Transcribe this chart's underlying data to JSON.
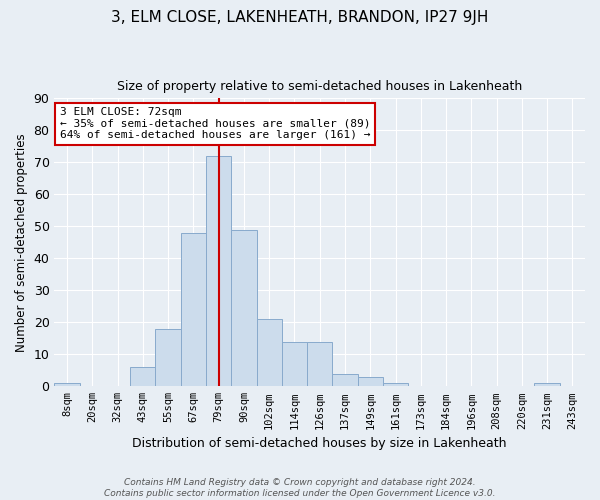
{
  "title": "3, ELM CLOSE, LAKENHEATH, BRANDON, IP27 9JH",
  "subtitle": "Size of property relative to semi-detached houses in Lakenheath",
  "xlabel": "Distribution of semi-detached houses by size in Lakenheath",
  "ylabel": "Number of semi-detached properties",
  "bin_labels": [
    "8sqm",
    "20sqm",
    "32sqm",
    "43sqm",
    "55sqm",
    "67sqm",
    "79sqm",
    "90sqm",
    "102sqm",
    "114sqm",
    "126sqm",
    "137sqm",
    "149sqm",
    "161sqm",
    "173sqm",
    "184sqm",
    "196sqm",
    "208sqm",
    "220sqm",
    "231sqm",
    "243sqm"
  ],
  "bar_values": [
    1,
    0,
    0,
    6,
    18,
    48,
    72,
    49,
    21,
    14,
    14,
    4,
    3,
    1,
    0,
    0,
    0,
    0,
    0,
    1,
    0
  ],
  "bar_color": "#ccdcec",
  "bar_edge_color": "#88aacc",
  "vline_color": "#cc0000",
  "vline_x_index": 6,
  "ylim": [
    0,
    90
  ],
  "yticks": [
    0,
    10,
    20,
    30,
    40,
    50,
    60,
    70,
    80,
    90
  ],
  "annotation_title": "3 ELM CLOSE: 72sqm",
  "annotation_line1": "← 35% of semi-detached houses are smaller (89)",
  "annotation_line2": "64% of semi-detached houses are larger (161) →",
  "annotation_box_color": "white",
  "annotation_box_edgecolor": "#cc0000",
  "footer_line1": "Contains HM Land Registry data © Crown copyright and database right 2024.",
  "footer_line2": "Contains public sector information licensed under the Open Government Licence v3.0.",
  "background_color": "#e8eef4",
  "grid_color": "white"
}
